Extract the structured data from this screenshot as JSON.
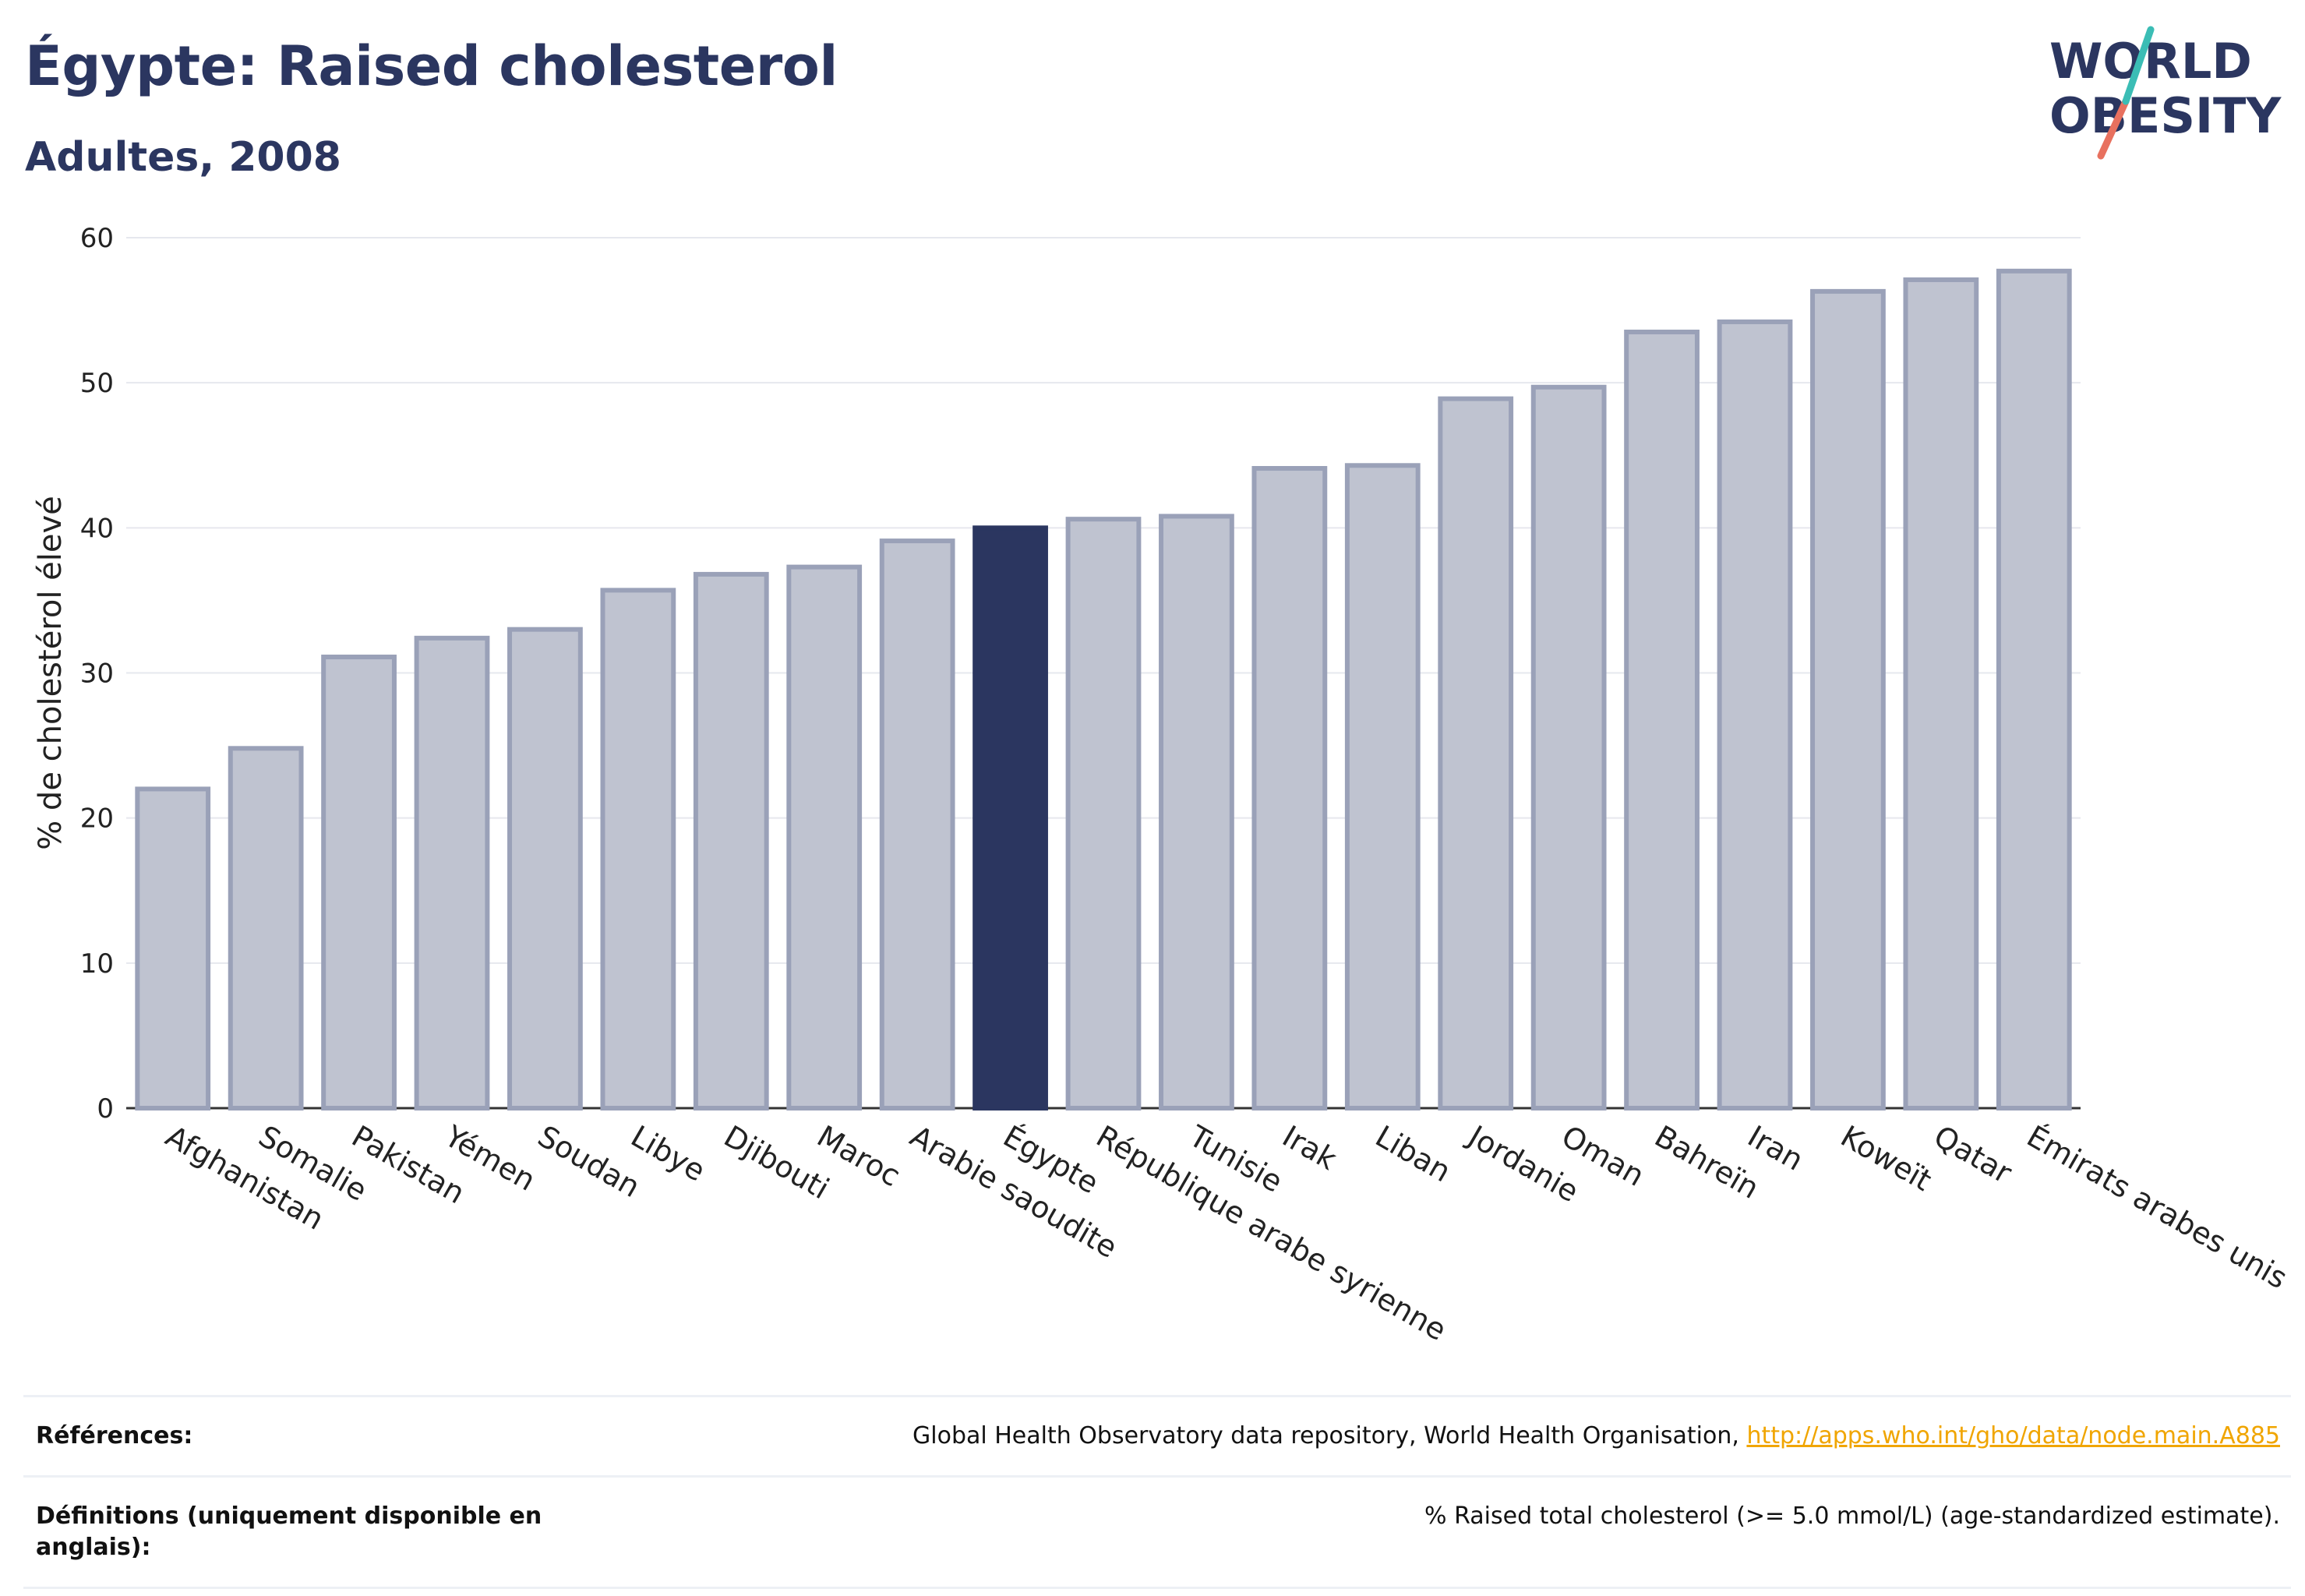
{
  "header": {
    "title": "Égypte: Raised cholesterol",
    "subtitle": "Adultes, 2008"
  },
  "logo": {
    "line1": "WORLD",
    "line2": "OBESITY"
  },
  "chart_data": {
    "type": "bar",
    "title": "Égypte: Raised cholesterol",
    "subtitle": "Adultes, 2008",
    "ylabel": "% de cholestérol élevé",
    "xlabel": "",
    "ylim": [
      0,
      60
    ],
    "yticks": [
      0,
      10,
      20,
      30,
      40,
      50,
      60
    ],
    "grid": true,
    "highlight": "Égypte",
    "colors": {
      "bar": "#bfc3d0",
      "bar_stroke": "#9aa1b8",
      "highlight": "#2b3660"
    },
    "categories": [
      "Afghanistan",
      "Somalie",
      "Pakistan",
      "Yémen",
      "Soudan",
      "Libye",
      "Djibouti",
      "Maroc",
      "Arabie saoudite",
      "Égypte",
      "République arabe syrienne",
      "Tunisie",
      "Irak",
      "Liban",
      "Jordanie",
      "Oman",
      "Bahreïn",
      "Iran",
      "Koweït",
      "Qatar",
      "Émirats arabes unis"
    ],
    "values": [
      22.0,
      24.8,
      31.1,
      32.4,
      33.0,
      35.7,
      36.8,
      37.3,
      39.1,
      40.0,
      40.6,
      40.8,
      44.1,
      44.3,
      48.9,
      49.7,
      53.5,
      54.2,
      56.3,
      57.1,
      57.7
    ]
  },
  "footer": {
    "references_label": "Références:",
    "references_text": "Global Health Observatory data repository, World Health Organisation, ",
    "references_link": "http://apps.who.int/gho/data/node.main.A885",
    "definitions_label": "Définitions (uniquement disponible en anglais):",
    "definitions_text": "% Raised total cholesterol (>= 5.0 mmol/L) (age-standardized estimate)."
  }
}
